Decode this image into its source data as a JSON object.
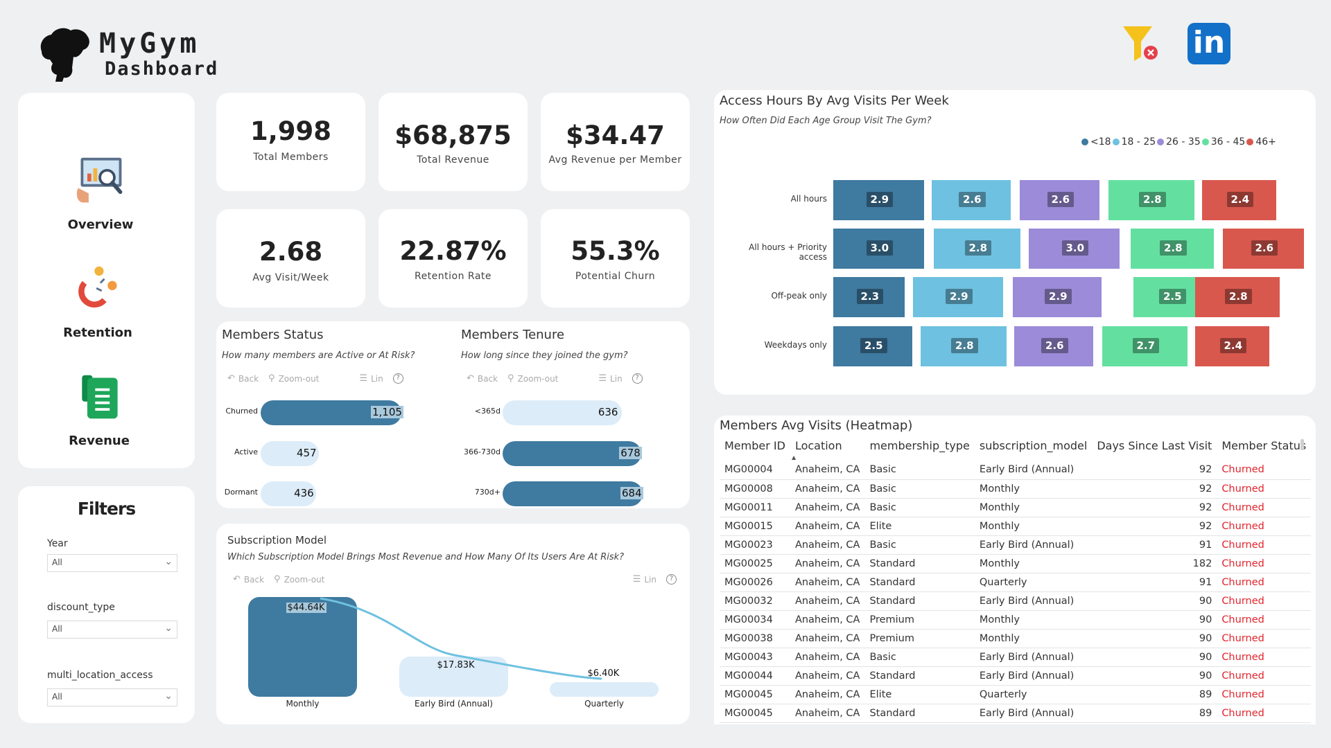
{
  "header": {
    "title": "MyGym",
    "subtitle": "Dashboard",
    "logo_icon": "bodybuilder-logo-icon",
    "clear_filters_icon": "filter-clear-icon",
    "linkedin_label": "in"
  },
  "nav": {
    "items": [
      {
        "label": "Overview",
        "icon": "analytics-icon"
      },
      {
        "label": "Retention",
        "icon": "magnet-icon"
      },
      {
        "label": "Revenue",
        "icon": "sheet-icon"
      }
    ]
  },
  "filters": {
    "title": "Filters",
    "fields": [
      {
        "label": "Year",
        "value": "All"
      },
      {
        "label": "discount_type",
        "value": "All"
      },
      {
        "label": "multi_location_access",
        "value": "All"
      }
    ]
  },
  "kpis": [
    {
      "value": "1,998",
      "label": "Total Members"
    },
    {
      "value": "$68,875",
      "label": "Total Revenue"
    },
    {
      "value": "$34.47",
      "label": "Avg Revenue per Member"
    },
    {
      "value": "2.68",
      "label": "Avg Visit/Week"
    },
    {
      "value": "22.87%",
      "label": "Retention Rate"
    },
    {
      "value": "55.3%",
      "label": "Potential Churn"
    }
  ],
  "toolbar": {
    "back": "Back",
    "zoom": "Zoom-out",
    "lin": "Lin",
    "help": "?"
  },
  "colors": {
    "dark_bar": "#3f7aa0",
    "light_bar": "#dcecf8",
    "churned": "#e0242c",
    "age_lt18": "#3f7aa0",
    "age_18_25": "#6ec1e0",
    "age_26_35": "#9b8bd8",
    "age_36_45": "#63e0a0",
    "age_46plus": "#d9584e"
  },
  "members_status": {
    "title": "Members Status",
    "subtitle": "How many members are Active or At Risk?",
    "chart_data": {
      "type": "bar",
      "orientation": "horizontal",
      "categories": [
        "Churned",
        "Active",
        "Dormant"
      ],
      "values": [
        1105,
        457,
        436
      ],
      "value_labels": [
        "1,105",
        "457",
        "436"
      ]
    }
  },
  "members_tenure": {
    "title": "Members Tenure",
    "subtitle": "How long since they joined the gym?",
    "chart_data": {
      "type": "bar",
      "orientation": "horizontal",
      "categories": [
        "<365d",
        "366-730d",
        "730d+"
      ],
      "values": [
        636,
        678,
        684
      ],
      "value_labels": [
        "636",
        "678",
        "684"
      ]
    }
  },
  "subscription": {
    "title": "Subscription Model",
    "subtitle": "Which Subscription Model Brings Most Revenue and How Many Of Its Users Are At Risk?",
    "chart_data": {
      "type": "bar",
      "categories": [
        "Monthly",
        "Early Bird (Annual)",
        "Quarterly"
      ],
      "values": [
        44640,
        17830,
        6400
      ],
      "value_labels": [
        "$44.64K",
        "$17.83K",
        "$6.40K"
      ],
      "overlay": "line"
    }
  },
  "access_heatmap": {
    "title": "Access Hours By Avg Visits Per Week",
    "subtitle": "How Often Did Each Age Group Visit The Gym?",
    "legend": [
      "<18",
      "18 - 25",
      "26 - 35",
      "36 - 45",
      "46+"
    ],
    "chart_data": {
      "type": "heatmap",
      "rows": [
        "All hours",
        "All hours + Priority access",
        "Off-peak only",
        "Weekdays only"
      ],
      "columns": [
        "<18",
        "18 - 25",
        "26 - 35",
        "36 - 45",
        "46+"
      ],
      "values": [
        [
          2.9,
          2.6,
          2.6,
          2.8,
          2.4
        ],
        [
          3.0,
          2.8,
          3.0,
          2.8,
          2.6
        ],
        [
          2.3,
          2.9,
          2.9,
          2.5,
          2.8
        ],
        [
          2.5,
          2.8,
          2.6,
          2.7,
          2.4
        ]
      ],
      "value_labels": [
        [
          "2.9",
          "2.6",
          "2.6",
          "2.8",
          "2.4"
        ],
        [
          "3.0",
          "2.8",
          "3.0",
          "2.8",
          "2.6"
        ],
        [
          "2.3",
          "2.9",
          "2.9",
          "2.5",
          "2.8"
        ],
        [
          "2.5",
          "2.8",
          "2.6",
          "2.7",
          "2.4"
        ]
      ]
    }
  },
  "members_table": {
    "title": "Members Avg Visits (Heatmap)",
    "columns": [
      "Member ID",
      "Location",
      "membership_type",
      "subscription_model",
      "Days Since Last Visit",
      "Member Status"
    ],
    "rows": [
      [
        "MG00004",
        "Anaheim, CA",
        "Basic",
        "Early Bird (Annual)",
        "92",
        "Churned"
      ],
      [
        "MG00008",
        "Anaheim, CA",
        "Basic",
        "Monthly",
        "92",
        "Churned"
      ],
      [
        "MG00011",
        "Anaheim, CA",
        "Basic",
        "Monthly",
        "92",
        "Churned"
      ],
      [
        "MG00015",
        "Anaheim, CA",
        "Elite",
        "Monthly",
        "92",
        "Churned"
      ],
      [
        "MG00023",
        "Anaheim, CA",
        "Basic",
        "Early Bird (Annual)",
        "91",
        "Churned"
      ],
      [
        "MG00025",
        "Anaheim, CA",
        "Standard",
        "Monthly",
        "182",
        "Churned"
      ],
      [
        "MG00026",
        "Anaheim, CA",
        "Standard",
        "Quarterly",
        "91",
        "Churned"
      ],
      [
        "MG00032",
        "Anaheim, CA",
        "Standard",
        "Early Bird (Annual)",
        "90",
        "Churned"
      ],
      [
        "MG00034",
        "Anaheim, CA",
        "Premium",
        "Monthly",
        "90",
        "Churned"
      ],
      [
        "MG00038",
        "Anaheim, CA",
        "Premium",
        "Monthly",
        "90",
        "Churned"
      ],
      [
        "MG00043",
        "Anaheim, CA",
        "Basic",
        "Early Bird (Annual)",
        "90",
        "Churned"
      ],
      [
        "MG00044",
        "Anaheim, CA",
        "Standard",
        "Early Bird (Annual)",
        "90",
        "Churned"
      ],
      [
        "MG00045",
        "Anaheim, CA",
        "Elite",
        "Quarterly",
        "89",
        "Churned"
      ],
      [
        "MG00045",
        "Anaheim, CA",
        "Standard",
        "Early Bird (Annual)",
        "89",
        "Churned"
      ]
    ]
  }
}
